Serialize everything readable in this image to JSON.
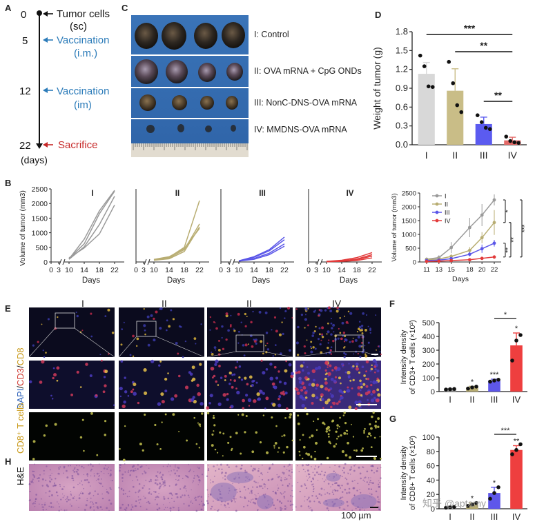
{
  "panel_letters": {
    "a": "A",
    "b": "B",
    "c": "C",
    "d": "D",
    "e": "E",
    "f": "F",
    "g": "G",
    "h": "H"
  },
  "colors": {
    "gray": "#9a9a9a",
    "olive": "#b8ad72",
    "blue": "#5a56e8",
    "red": "#e23b3b",
    "teal": "#2b7bb9",
    "timeline_red": "#c62828",
    "d_gray": "#d8d8d8",
    "d_olive": "#c9bd87",
    "d_blue": "#5b5bf0",
    "d_red": "#e46a68",
    "f_blue": "#5e57ea",
    "f_red": "#ee3f3f"
  },
  "timeline": {
    "events": [
      {
        "day": "0",
        "label_line1": "Tumor cells",
        "label_line2": "(sc)"
      },
      {
        "day": "5",
        "label_line1": "Vaccination",
        "label_line2": "(i.m.)"
      },
      {
        "day": "12",
        "label_line1": "Vaccination",
        "label_line2": "(im)"
      },
      {
        "day": "22",
        "label_line1": "Sacrifice",
        "label_line2": ""
      }
    ],
    "unit": "(days)"
  },
  "photo": {
    "rows": [
      {
        "label": "I: Control",
        "count": 4
      },
      {
        "label": "II: OVA mRNA + CpG ONDs",
        "count": 4
      },
      {
        "label": "III: NonC-DNS-OVA mRNA",
        "count": 4
      },
      {
        "label": "IV: MMDNS-OVA mRNA",
        "count": 4
      }
    ]
  },
  "chart_data": [
    {
      "id": "D",
      "type": "bar",
      "ylabel": "Weight of tumor (g)",
      "categories": [
        "I",
        "II",
        "III",
        "IV"
      ],
      "values": [
        1.13,
        0.86,
        0.33,
        0.07
      ],
      "errors": [
        0.18,
        0.35,
        0.11,
        0.05
      ],
      "points": [
        [
          1.42,
          1.25,
          0.93,
          0.92
        ],
        [
          1.32,
          0.98,
          0.63,
          0.52
        ],
        [
          0.47,
          0.36,
          0.27,
          0.25
        ],
        [
          0.13,
          0.06,
          0.04,
          0.03
        ]
      ],
      "ylim": [
        0,
        1.8
      ],
      "yticks": [
        "0.0",
        "0.3",
        "0.6",
        "0.9",
        "1.2",
        "1.5",
        "1.8"
      ],
      "significance": [
        {
          "from": "I",
          "to": "IV",
          "label": "***"
        },
        {
          "from": "II",
          "to": "IV",
          "label": "**"
        },
        {
          "from": "III",
          "to": "IV",
          "label": "**"
        }
      ]
    },
    {
      "id": "B-individual",
      "type": "line",
      "ylabel": "Volume of tumor (mm3)",
      "xlabel": "Days",
      "xticks": [
        "0",
        "3",
        "10",
        "14",
        "18",
        "22"
      ],
      "yticks": [
        "0",
        "500",
        "1000",
        "1500",
        "2000",
        "2500"
      ],
      "ylim": [
        0,
        2500
      ],
      "x": [
        10,
        14,
        18,
        22
      ],
      "groups": [
        {
          "name": "I",
          "lines": [
            [
              100,
              780,
              1750,
              2450
            ],
            [
              120,
              620,
              1650,
              2420
            ],
            [
              90,
              520,
              1280,
              2250
            ],
            [
              140,
              480,
              960,
              1950
            ]
          ]
        },
        {
          "name": "II",
          "lines": [
            [
              80,
              160,
              500,
              2100
            ],
            [
              70,
              140,
              420,
              1300
            ],
            [
              60,
              110,
              360,
              1200
            ],
            [
              90,
              180,
              460,
              1150
            ]
          ]
        },
        {
          "name": "III",
          "lines": [
            [
              40,
              180,
              420,
              850
            ],
            [
              40,
              160,
              380,
              760
            ],
            [
              30,
              120,
              300,
              620
            ],
            [
              30,
              90,
              250,
              540
            ]
          ]
        },
        {
          "name": "IV",
          "lines": [
            [
              20,
              60,
              150,
              320
            ],
            [
              20,
              40,
              100,
              250
            ],
            [
              10,
              30,
              80,
              200
            ],
            [
              10,
              20,
              50,
              140
            ]
          ]
        }
      ]
    },
    {
      "id": "B-mean",
      "type": "line",
      "ylabel": "Volume of tumor (mm3)",
      "xlabel": "Days",
      "xticks": [
        "11",
        "13",
        "15",
        "18",
        "20",
        "22"
      ],
      "yticks": [
        "0",
        "500",
        "1000",
        "1500",
        "2000",
        "2500"
      ],
      "ylim": [
        0,
        2500
      ],
      "x": [
        11,
        13,
        15,
        18,
        20,
        22
      ],
      "series": [
        {
          "name": "I",
          "values": [
            100,
            160,
            520,
            1250,
            1700,
            2250
          ],
          "errors": [
            60,
            80,
            200,
            350,
            400,
            200
          ]
        },
        {
          "name": "II",
          "values": [
            80,
            110,
            200,
            420,
            880,
            1430
          ],
          "errors": [
            40,
            50,
            80,
            120,
            200,
            450
          ]
        },
        {
          "name": "III",
          "values": [
            50,
            70,
            120,
            280,
            480,
            680
          ],
          "errors": [
            30,
            30,
            50,
            80,
            150,
            120
          ]
        },
        {
          "name": "IV",
          "values": [
            20,
            30,
            50,
            80,
            130,
            180
          ],
          "errors": [
            10,
            15,
            20,
            30,
            40,
            60
          ]
        }
      ],
      "significance": [
        "*",
        "**",
        "**",
        "***"
      ]
    },
    {
      "id": "F",
      "type": "bar",
      "ylabel_line1": "Intensity density",
      "ylabel_line2": "of CD3+ T cells (×10³)",
      "categories": [
        "I",
        "II",
        "III",
        "IV"
      ],
      "values": [
        18,
        30,
        80,
        335
      ],
      "errors": [
        3,
        8,
        10,
        90
      ],
      "points": [
        [
          15,
          17,
          19
        ],
        [
          22,
          30,
          36
        ],
        [
          72,
          80,
          86
        ],
        [
          225,
          370,
          410
        ]
      ],
      "ylim": [
        0,
        500
      ],
      "yticks": [
        "0",
        "100",
        "200",
        "300",
        "400",
        "500"
      ],
      "stars": [
        "",
        "*",
        "***",
        "*"
      ],
      "significance": [
        {
          "from": "III",
          "to": "IV",
          "label": "*"
        }
      ]
    },
    {
      "id": "G",
      "type": "bar",
      "ylabel_line1": "Intensity density",
      "ylabel_line2": "of CD8+ T cells (×10³)",
      "categories": [
        "I",
        "II",
        "III",
        "IV"
      ],
      "values": [
        2,
        6,
        22,
        82
      ],
      "errors": [
        1,
        2,
        8,
        6
      ],
      "points": [
        [
          1.5,
          2,
          2.5
        ],
        [
          4,
          6,
          8
        ],
        [
          14,
          22,
          30
        ],
        [
          76,
          82,
          90
        ]
      ],
      "ylim": [
        0,
        100
      ],
      "yticks": [
        "0",
        "20",
        "40",
        "60",
        "80",
        "100"
      ],
      "stars": [
        "",
        "*",
        "*",
        "**"
      ],
      "significance": [
        {
          "from": "III",
          "to": "IV",
          "label": "***"
        }
      ]
    }
  ],
  "e_panel": {
    "col_labels": [
      "I",
      "II",
      "II",
      "IV"
    ],
    "row_labels": {
      "dapi": "DAPI",
      "cd3": "CD3",
      "cd8": "CD8",
      "cd8t": "CD8⁺ T cells",
      "he": "H&E"
    },
    "scale": "100 µm"
  },
  "watermark": "知乎 @aptamy"
}
